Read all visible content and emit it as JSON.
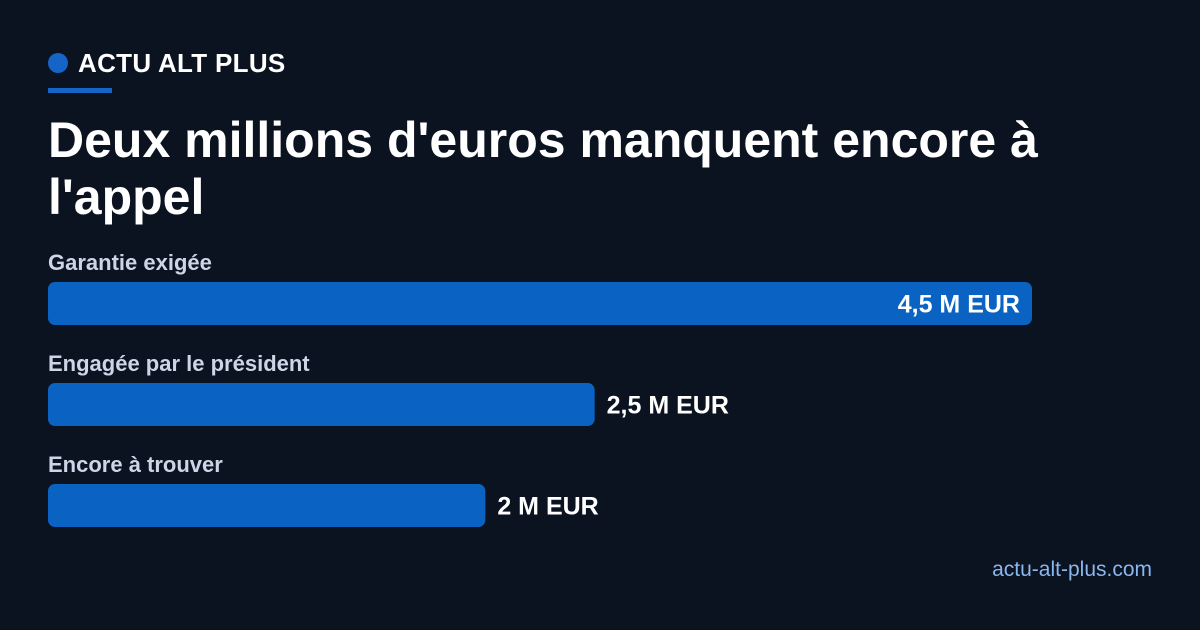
{
  "brand": {
    "name": "ACTU ALT PLUS"
  },
  "headline": "Deux millions d'euros manquent encore à l'appel",
  "source": "actu-alt-plus.com",
  "colors": {
    "background": "#0b1220",
    "accent": "#1565c8",
    "bar": "#0a63c2",
    "label": "#ccd6e6",
    "link": "#8ab7ec"
  },
  "chart_data": {
    "type": "bar",
    "orientation": "horizontal",
    "categories": [
      "Garantie exigée",
      "Engagée par le président",
      "Encore à trouver"
    ],
    "values": [
      4.5,
      2.5,
      2
    ],
    "value_labels": [
      "4,5 M EUR",
      "2,5 M EUR",
      "2 M EUR"
    ],
    "unit": "M EUR",
    "xlim": [
      0,
      4.5
    ],
    "grid": false,
    "legend": "none"
  }
}
